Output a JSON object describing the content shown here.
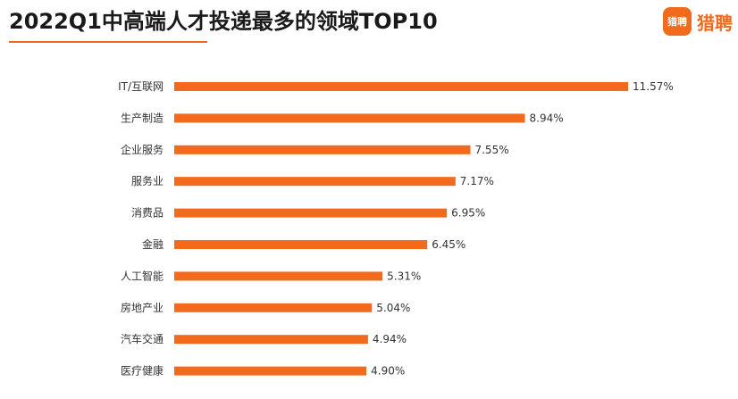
{
  "header": {
    "title": "2022Q1中高端人才投递最多的领域TOP10"
  },
  "logo": {
    "badge_text": "猎聘",
    "text": "猎聘"
  },
  "colors": {
    "bar": "#f26a1b",
    "accent": "#f26a1b"
  },
  "chart_data": {
    "type": "bar",
    "orientation": "horizontal",
    "title": "2022Q1中高端人才投递最多的领域TOP10",
    "categories": [
      "IT/互联网",
      "生产制造",
      "企业服务",
      "服务业",
      "消费品",
      "金融",
      "人工智能",
      "房地产业",
      "汽车交通",
      "医疗健康"
    ],
    "values": [
      11.57,
      8.94,
      7.55,
      7.17,
      6.95,
      6.45,
      5.31,
      5.04,
      4.94,
      4.9
    ],
    "value_labels": [
      "11.57%",
      "8.94%",
      "7.55%",
      "7.17%",
      "6.95%",
      "6.45%",
      "5.31%",
      "5.04%",
      "4.94%",
      "4.90%"
    ],
    "xlabel": "",
    "ylabel": "",
    "xlim": [
      0,
      11.57
    ],
    "grid": false,
    "legend": "none"
  }
}
